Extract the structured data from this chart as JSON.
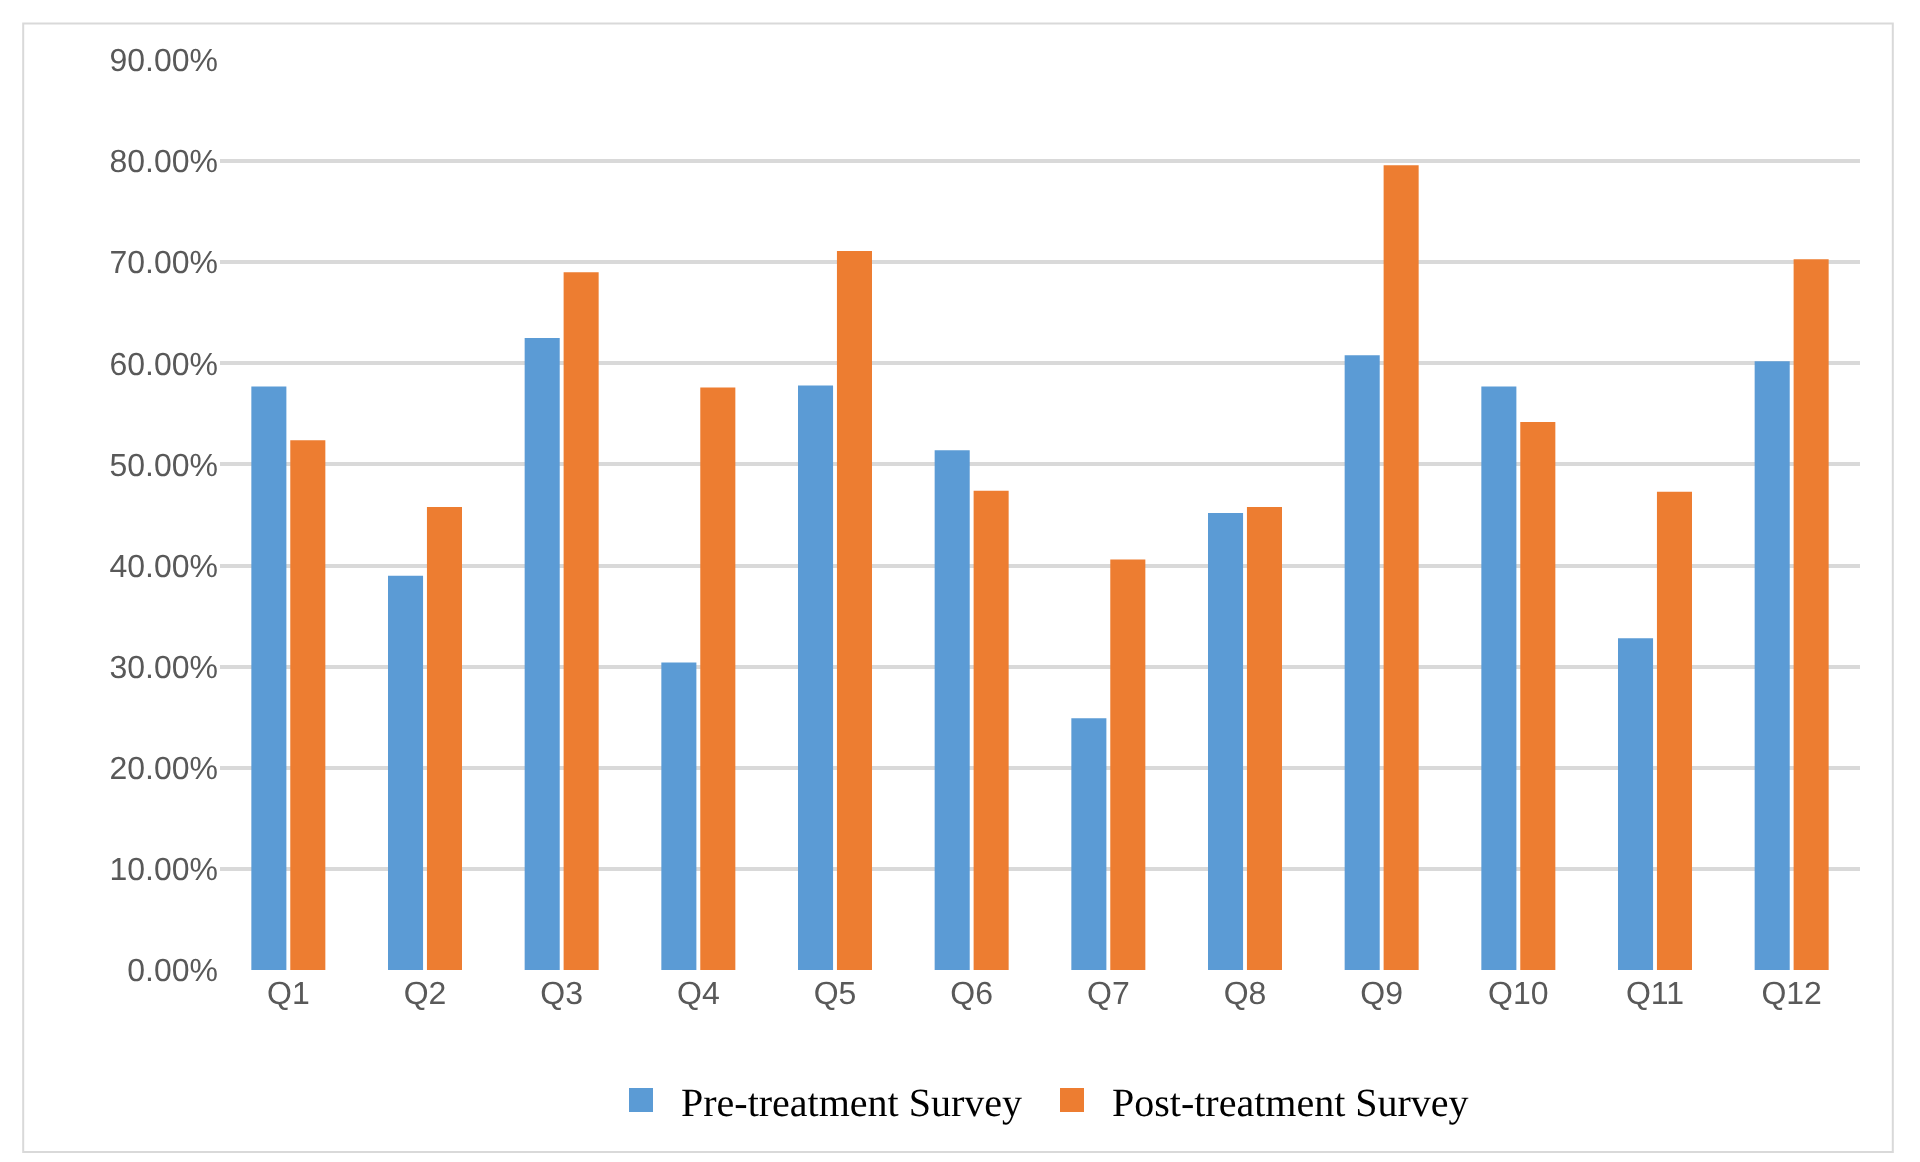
{
  "chart_data": {
    "type": "bar",
    "categories": [
      "Q1",
      "Q2",
      "Q3",
      "Q4",
      "Q5",
      "Q6",
      "Q7",
      "Q8",
      "Q9",
      "Q10",
      "Q11",
      "Q12"
    ],
    "series": [
      {
        "name": "Pre-treatment Survey",
        "color": "#5b9bd5",
        "values": [
          57.7,
          39.0,
          62.5,
          30.4,
          57.8,
          51.4,
          24.9,
          45.2,
          60.8,
          57.7,
          32.8,
          60.2
        ]
      },
      {
        "name": "Post-treatment Survey",
        "color": "#ed7d31",
        "values": [
          52.4,
          45.8,
          69.0,
          57.6,
          71.1,
          47.4,
          40.6,
          45.8,
          79.6,
          54.2,
          47.3,
          70.3
        ]
      }
    ],
    "ylim": [
      0,
      90
    ],
    "yticks": [
      {
        "value": 0,
        "label": "0.00%"
      },
      {
        "value": 10,
        "label": "10.00%"
      },
      {
        "value": 20,
        "label": "20.00%"
      },
      {
        "value": 30,
        "label": "30.00%"
      },
      {
        "value": 40,
        "label": "40.00%"
      },
      {
        "value": 50,
        "label": "50.00%"
      },
      {
        "value": 60,
        "label": "60.00%"
      },
      {
        "value": 70,
        "label": "70.00%"
      },
      {
        "value": 80,
        "label": "80.00%"
      },
      {
        "value": 90,
        "label": "90.00%"
      }
    ],
    "grid": "y",
    "legend": "bottom"
  }
}
